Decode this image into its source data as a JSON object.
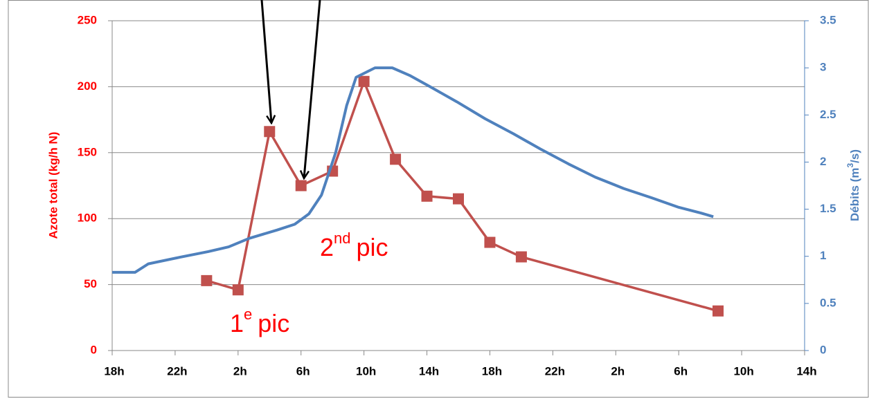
{
  "chart_data": {
    "type": "line",
    "xlim": [
      0,
      44
    ],
    "xticks": [
      {
        "value": 0,
        "label": "18h"
      },
      {
        "value": 4,
        "label": "22h"
      },
      {
        "value": 8,
        "label": "2h"
      },
      {
        "value": 12,
        "label": "6h"
      },
      {
        "value": 16,
        "label": "10h"
      },
      {
        "value": 20,
        "label": "14h"
      },
      {
        "value": 24,
        "label": "18h"
      },
      {
        "value": 28,
        "label": "22h"
      },
      {
        "value": 32,
        "label": "2h"
      },
      {
        "value": 36,
        "label": "6h"
      },
      {
        "value": 40,
        "label": "10h"
      },
      {
        "value": 44,
        "label": "14h"
      }
    ],
    "ylim": [
      0,
      250
    ],
    "yticks": [
      0,
      50,
      100,
      150,
      200,
      250
    ],
    "y2lim": [
      0,
      3.5
    ],
    "y2ticks": [
      0,
      0.5,
      1,
      1.5,
      2,
      2.5,
      3,
      3.5
    ],
    "ylabel": "Azote total (kg/h N)",
    "y2label": {
      "before": "Débits (m",
      "sup": "3",
      "after": "/s)"
    },
    "grid": true,
    "annotations": [
      {
        "base": "1",
        "sup": "e",
        "tail": "pic"
      },
      {
        "base": "2",
        "sup": "nd",
        "tail": "pic"
      }
    ],
    "series": [
      {
        "color": "#c0504d",
        "marker": "square",
        "x": [
          6,
          8,
          10,
          12,
          14,
          16,
          18,
          20,
          22,
          24,
          26,
          38.5
        ],
        "values": [
          53,
          46,
          166,
          125,
          136,
          204,
          145,
          117,
          115,
          82,
          71,
          30
        ]
      },
      {
        "color": "#4f81bd",
        "axis": "y2",
        "x": [
          0,
          1.45,
          2.3,
          4.3,
          6.1,
          7.4,
          8.7,
          10.5,
          11.6,
          12.5,
          13.3,
          14.2,
          14.9,
          15.5,
          16.7,
          17.8,
          18.9,
          20.2,
          21.9,
          23.7,
          25.5,
          27.2,
          29,
          30.7,
          32.5,
          34.3,
          36,
          37.4,
          38.2
        ],
        "values": [
          0.83,
          0.83,
          0.92,
          0.99,
          1.05,
          1.1,
          1.19,
          1.28,
          1.34,
          1.45,
          1.65,
          2.1,
          2.6,
          2.9,
          3.0,
          3.0,
          2.92,
          2.8,
          2.64,
          2.46,
          2.3,
          2.14,
          1.98,
          1.84,
          1.72,
          1.62,
          1.52,
          1.46,
          1.42
        ]
      }
    ]
  }
}
